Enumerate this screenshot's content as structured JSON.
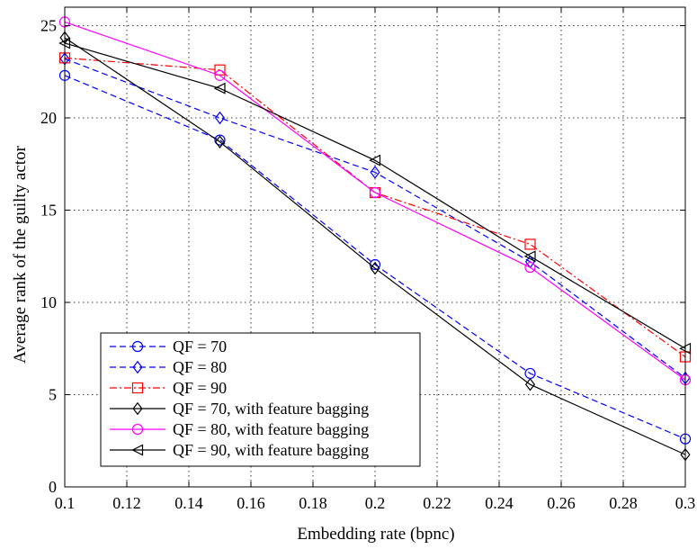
{
  "chart_data": {
    "type": "line",
    "title": "",
    "xlabel": "Embedding rate (bpnc)",
    "ylabel": "Average rank of the guilty actor",
    "xlim": [
      0.1,
      0.3
    ],
    "ylim": [
      0,
      26
    ],
    "xticks": [
      0.1,
      0.12,
      0.14,
      0.16,
      0.18,
      0.2,
      0.22,
      0.24,
      0.26,
      0.28,
      0.3
    ],
    "xtick_labels": [
      "0.1",
      "0.12",
      "0.14",
      "0.16",
      "0.18",
      "0.2",
      "0.22",
      "0.24",
      "0.26",
      "0.28",
      "0.3"
    ],
    "yticks": [
      0,
      5,
      10,
      15,
      20,
      25
    ],
    "ytick_labels": [
      "0",
      "5",
      "10",
      "15",
      "20",
      "25"
    ],
    "grid": true,
    "legend_position": "bottom-left",
    "x": [
      0.1,
      0.15,
      0.2,
      0.25,
      0.3
    ],
    "series": [
      {
        "name": "QF = 70",
        "values": [
          22.3,
          18.8,
          12.05,
          6.15,
          2.6
        ],
        "color": "#0000ff",
        "dash": "dashed",
        "marker": "circle"
      },
      {
        "name": "QF = 80",
        "values": [
          23.2,
          20.0,
          17.05,
          12.2,
          5.9
        ],
        "color": "#0000ff",
        "dash": "dashed",
        "marker": "diamond"
      },
      {
        "name": "QF = 90",
        "values": [
          23.25,
          22.6,
          15.95,
          13.15,
          7.05
        ],
        "color": "#ff0000",
        "dash": "dashdot",
        "marker": "square"
      },
      {
        "name": "QF = 70, with feature bagging",
        "values": [
          24.35,
          18.7,
          11.85,
          5.55,
          1.75
        ],
        "color": "#000000",
        "dash": "solid",
        "marker": "diamond"
      },
      {
        "name": "QF = 80, with feature bagging",
        "values": [
          25.2,
          22.3,
          15.95,
          11.9,
          5.8
        ],
        "color": "#ff00ff",
        "dash": "solid",
        "marker": "circle"
      },
      {
        "name": "QF = 90, with feature bagging",
        "values": [
          24.05,
          21.6,
          17.7,
          12.5,
          7.5
        ],
        "color": "#000000",
        "dash": "solid",
        "marker": "triangle-left"
      }
    ]
  }
}
